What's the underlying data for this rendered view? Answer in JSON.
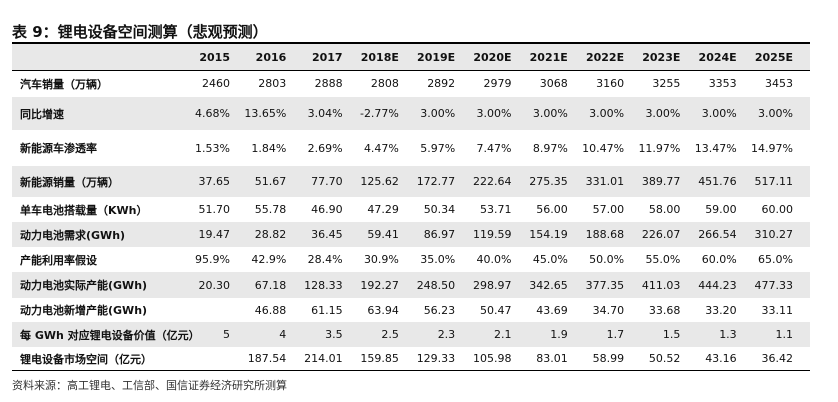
{
  "header": {
    "title": "表 9：锂电设备空间测算（悲观预测）"
  },
  "table": {
    "columns": [
      "2015",
      "2016",
      "2017",
      "2018E",
      "2019E",
      "2020E",
      "2021E",
      "2022E",
      "2023E",
      "2024E",
      "2025E"
    ],
    "rows": [
      {
        "label": "汽车销量（万辆）",
        "cells": [
          "2460",
          "2803",
          "2888",
          "2808",
          "2892",
          "2979",
          "3068",
          "3160",
          "3255",
          "3353",
          "3453"
        ]
      },
      {
        "label": "同比增速",
        "cells": [
          "4.68%",
          "13.65%",
          "3.04%",
          "-2.77%",
          "3.00%",
          "3.00%",
          "3.00%",
          "3.00%",
          "3.00%",
          "3.00%",
          "3.00%"
        ]
      },
      {
        "label": "新能源车渗透率",
        "cells": [
          "1.53%",
          "1.84%",
          "2.69%",
          "4.47%",
          "5.97%",
          "7.47%",
          "8.97%",
          "10.47%",
          "11.97%",
          "13.47%",
          "14.97%"
        ]
      },
      {
        "label": "新能源销量（万辆）",
        "cells": [
          "37.65",
          "51.67",
          "77.70",
          "125.62",
          "172.77",
          "222.64",
          "275.35",
          "331.01",
          "389.77",
          "451.76",
          "517.11"
        ]
      },
      {
        "label": "单车电池搭载量（KWh）",
        "cells": [
          "51.70",
          "55.78",
          "46.90",
          "47.29",
          "50.34",
          "53.71",
          "56.00",
          "57.00",
          "58.00",
          "59.00",
          "60.00"
        ]
      },
      {
        "label": "动力电池需求(GWh)",
        "cells": [
          "19.47",
          "28.82",
          "36.45",
          "59.41",
          "86.97",
          "119.59",
          "154.19",
          "188.68",
          "226.07",
          "266.54",
          "310.27"
        ]
      },
      {
        "label": "产能利用率假设",
        "cells": [
          "95.9%",
          "42.9%",
          "28.4%",
          "30.9%",
          "35.0%",
          "40.0%",
          "45.0%",
          "50.0%",
          "55.0%",
          "60.0%",
          "65.0%"
        ]
      },
      {
        "label": "动力电池实际产能(GWh)",
        "cells": [
          "20.30",
          "67.18",
          "128.33",
          "192.27",
          "248.50",
          "298.97",
          "342.65",
          "377.35",
          "411.03",
          "444.23",
          "477.33"
        ]
      },
      {
        "label": "动力电池新增产能(GWh)",
        "cells": [
          null,
          "46.88",
          "61.15",
          "63.94",
          "56.23",
          "50.47",
          "43.69",
          "34.70",
          "33.68",
          "33.20",
          "33.11"
        ]
      },
      {
        "label": "每 GWh 对应锂电设备价值（亿元）",
        "cells": [
          "5",
          "4",
          "3.5",
          "2.5",
          "2.3",
          "2.1",
          "1.9",
          "1.7",
          "1.5",
          "1.3",
          "1.1"
        ]
      },
      {
        "label": "锂电设备市场空间（亿元）",
        "cells": [
          null,
          "187.54",
          "214.01",
          "159.85",
          "129.33",
          "105.98",
          "83.01",
          "58.99",
          "50.52",
          "43.16",
          "36.42"
        ]
      }
    ]
  },
  "footer": {
    "source": "资料来源：高工锂电、工信部、国信证券经济研究所测算"
  }
}
